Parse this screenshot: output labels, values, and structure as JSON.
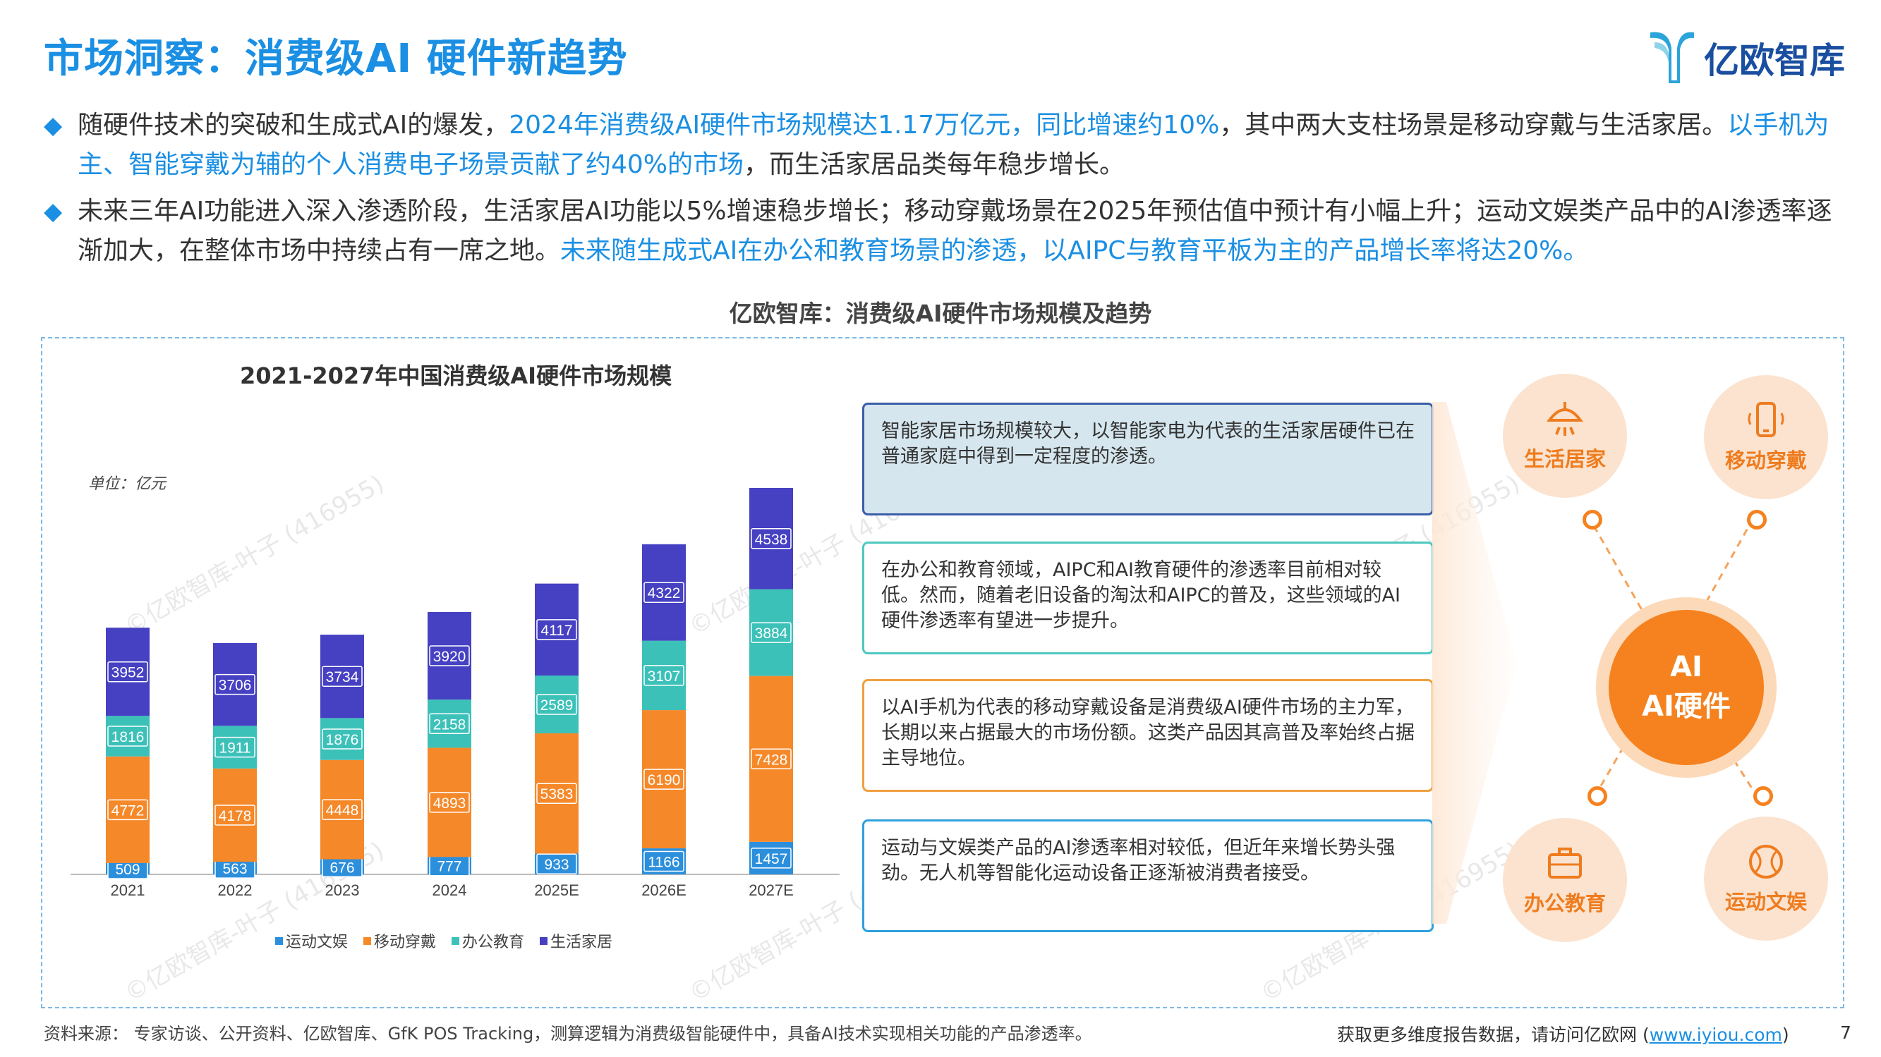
{
  "header": {
    "title": "市场洞察：消费级AI 硬件新趋势",
    "logo_text": "亿欧智库"
  },
  "bullets": [
    {
      "pre": "随硬件技术的突破和生成式AI的爆发，",
      "hl1": "2024年消费级AI硬件市场规模达1.17万亿元，同比增速约10%",
      "mid": "，其中两大支柱场景是移动穿戴与生活家居。",
      "hl2": "以手机为主、智能穿戴为辅的个人消费电子场景贡献了约40%的市场",
      "post": "，而生活家居品类每年稳步增长。"
    },
    {
      "pre": "未来三年AI功能进入深入渗透阶段，生活家居AI功能以5%增速稳步增长；移动穿戴场景在2025年预估值中预计有小幅上升；运动文娱类产品中的AI渗透率逐渐加大，在整体市场中持续占有一席之地。",
      "hl1": "未来随生成式AI在办公和教育场景的渗透，以AIPC与教育平板为主的产品增长率将达20%。"
    }
  ],
  "section_title": "亿欧智库：消费级AI硬件市场规模及趋势",
  "chart_data": {
    "type": "bar",
    "stacked": true,
    "title": "2021-2027年中国消费级AI硬件市场规模",
    "unit": "单位：亿元",
    "categories": [
      "2021",
      "2022",
      "2023",
      "2024",
      "2025E",
      "2026E",
      "2027E"
    ],
    "series": [
      {
        "name": "运动文娱",
        "color": "#2c8fdc",
        "values": [
          509,
          563,
          676,
          777,
          933,
          1166,
          1457
        ]
      },
      {
        "name": "移动穿戴",
        "color": "#f5892a",
        "values": [
          4772,
          4178,
          4448,
          4893,
          5383,
          6190,
          7428
        ]
      },
      {
        "name": "办公教育",
        "color": "#3cc1b9",
        "values": [
          1816,
          1911,
          1876,
          2158,
          2589,
          3107,
          3884
        ]
      },
      {
        "name": "生活家居",
        "color": "#4640c2",
        "values": [
          3952,
          3706,
          3734,
          3920,
          4117,
          4322,
          4538
        ]
      }
    ],
    "legend_position": "bottom",
    "grid": false
  },
  "boxes": [
    "智能家居市场规模较大，以智能家电为代表的生活家居硬件已在普通家庭中得到一定程度的渗透。",
    "在办公和教育领域，AIPC和AI教育硬件的渗透率目前相对较低。然而，随着老旧设备的淘汰和AIPC的普及，这些领域的AI硬件渗透率有望进一步提升。",
    "以AI手机为代表的移动穿戴设备是消费级AI硬件市场的主力军，长期以来占据最大的市场份额。这类产品因其高普及率始终占据主导地位。",
    "运动与文娱类产品的AI渗透率相对较低，但近年来增长势头强劲。无人机等智能化运动设备正逐渐被消费者接受。"
  ],
  "diagram": {
    "center_icon_text": "AI",
    "center_label": "AI硬件",
    "nodes": [
      {
        "label": "生活居家",
        "icon": "lamp-icon"
      },
      {
        "label": "移动穿戴",
        "icon": "phone-icon"
      },
      {
        "label": "办公教育",
        "icon": "briefcase-icon"
      },
      {
        "label": "运动文娱",
        "icon": "ball-icon"
      }
    ]
  },
  "footer": {
    "source": "资料来源：  专家访谈、公开资料、亿欧智库、GfK POS Tracking，测算逻辑为消费级智能硬件中，具备AI技术实现相关功能的产品渗透率。",
    "more_prefix": "获取更多维度报告数据，请访问亿欧网 (",
    "link": "www.iyiou.com",
    "more_suffix": ")",
    "page": "7"
  },
  "watermark": "©亿欧智库-叶子 (416955)"
}
